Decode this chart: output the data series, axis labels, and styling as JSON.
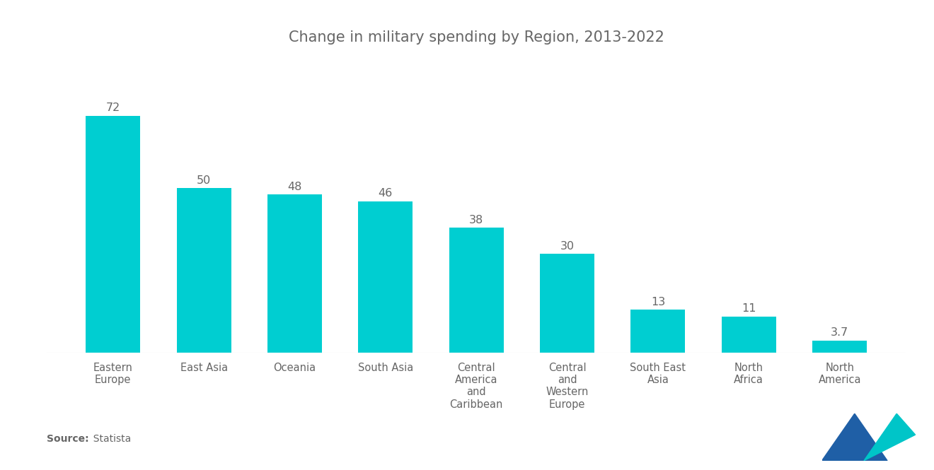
{
  "title": "Change in military spending by Region, 2013-2022",
  "categories": [
    "Eastern\nEurope",
    "East Asia",
    "Oceania",
    "South Asia",
    "Central\nAmerica\nand\nCaribbean",
    "Central\nand\nWestern\nEurope",
    "South East\nAsia",
    "North\nAfrica",
    "North\nAmerica"
  ],
  "values": [
    72,
    50,
    48,
    46,
    38,
    30,
    13,
    11,
    3.7
  ],
  "bar_color": "#00CED1",
  "background_color": "#ffffff",
  "value_labels": [
    "72",
    "50",
    "48",
    "46",
    "38",
    "30",
    "13",
    "11",
    "3.7"
  ],
  "source_bold": "Source:",
  "source_normal": "  Statista",
  "title_fontsize": 15,
  "label_fontsize": 10.5,
  "value_fontsize": 11.5,
  "text_color": "#666666",
  "ylim_max": 90
}
